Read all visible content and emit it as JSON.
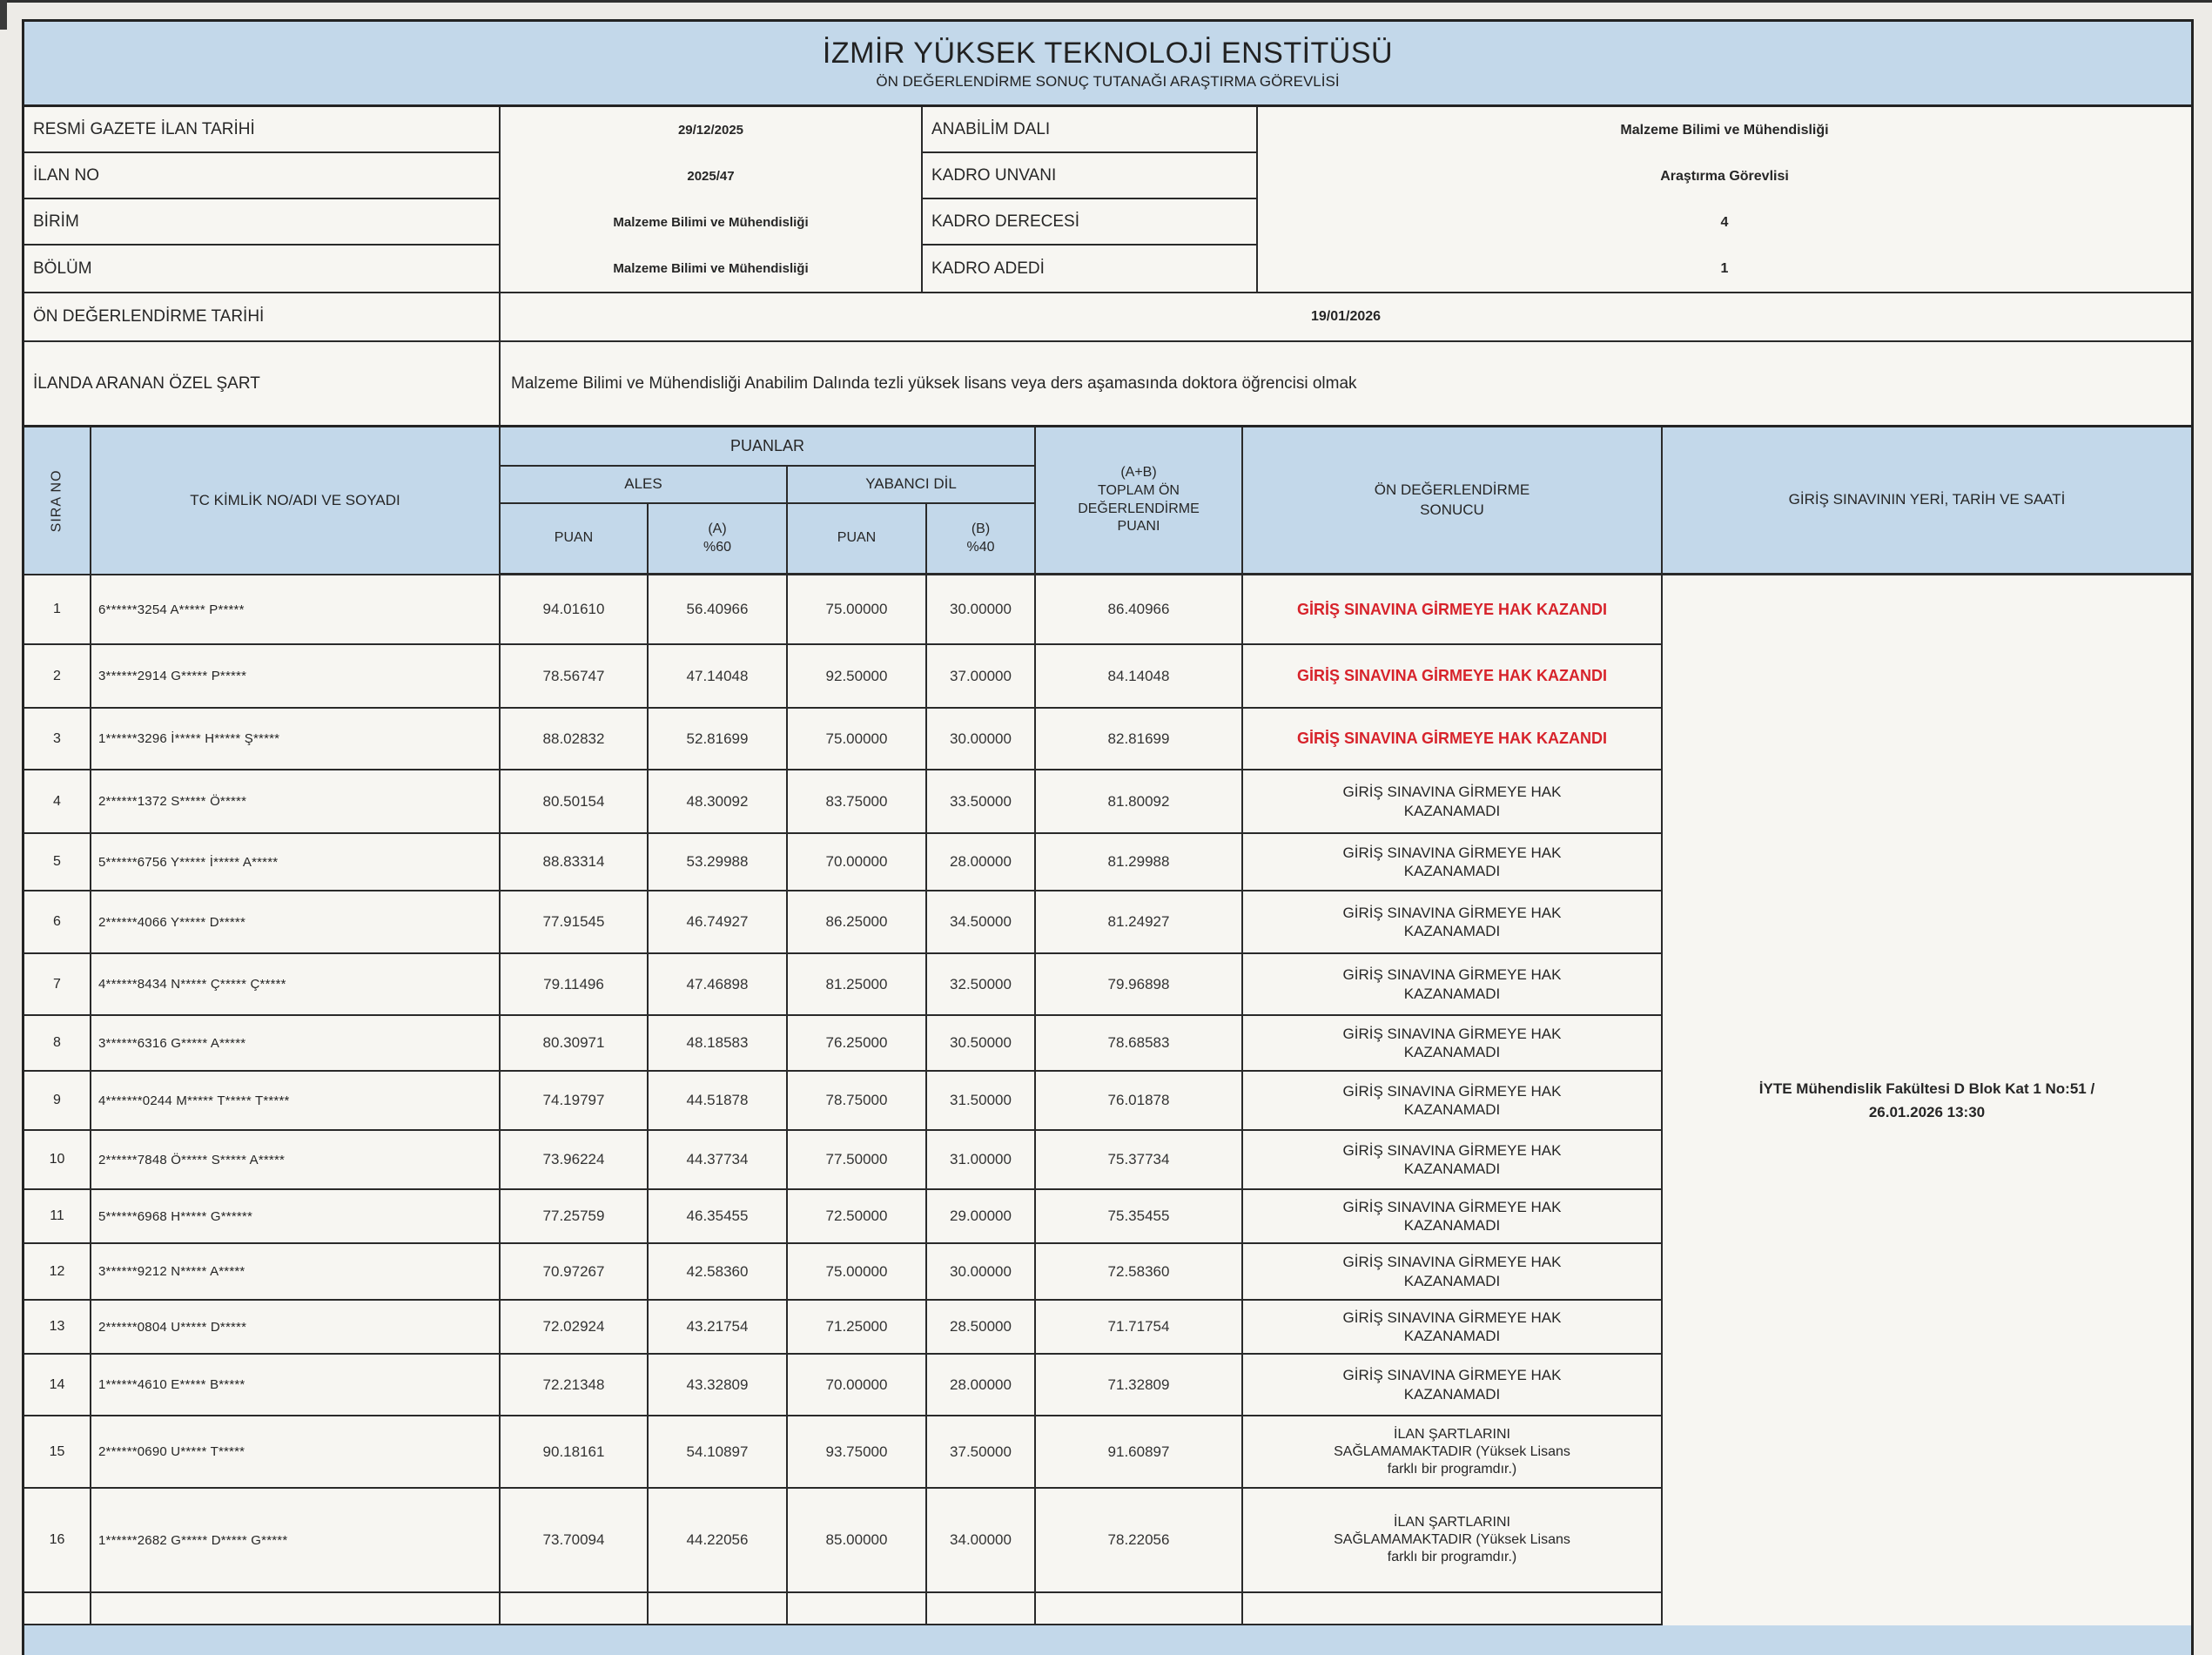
{
  "colors": {
    "header_blue": "#c3d8ea",
    "result_red": "#d7232b",
    "border_dark": "#232323"
  },
  "title": {
    "line1": "İZMİR YÜKSEK TEKNOLOJİ ENSTİTÜSÜ",
    "line2": "ÖN DEĞERLENDİRME SONUÇ TUTANAĞI ARAŞTIRMA GÖREVLİSİ"
  },
  "info": {
    "left_labels": [
      "RESMİ GAZETE İLAN TARİHİ",
      "İLAN NO",
      "BİRİM",
      "BÖLÜM"
    ],
    "left_values": [
      "29/12/2025",
      "2025/47",
      "Malzeme Bilimi ve Mühendisliği",
      "Malzeme Bilimi ve Mühendisliği"
    ],
    "right_labels": [
      "ANABİLİM DALI",
      "KADRO UNVANI",
      "KADRO DERECESİ",
      "KADRO ADEDİ"
    ],
    "right_values": [
      "Malzeme Bilimi ve Mühendisliği",
      "Araştırma Görevlisi",
      "4",
      "1"
    ],
    "eval_date_label": "ÖN DEĞERLENDİRME TARİHİ",
    "eval_date_value": "19/01/2026",
    "special_label": "İLANDA ARANAN ÖZEL ŞART",
    "special_value": "Malzeme Bilimi ve Mühendisliği Anabilim Dalında tezli yüksek lisans veya ders aşamasında doktora öğrencisi olmak"
  },
  "table": {
    "headers": {
      "sira": "SIRA NO",
      "name": "TC KİMLİK NO/ADI VE SOYADI",
      "puanlar": "PUANLAR",
      "ales": "ALES",
      "yabanci_dil": "YABANCI DİL",
      "puan1": "PUAN",
      "a60": "(A)\n%60",
      "puan2": "PUAN",
      "b40": "(B)\n%40",
      "toplam": "(A+B)\nTOPLAM ÖN\nDEĞERLENDİRME\nPUANI",
      "sonuc": "ÖN DEĞERLENDİRME\nSONUCU",
      "yer": "GİRİŞ SINAVININ YERİ, TARİH VE SAATİ"
    },
    "venue": "İYTE Mühendislik Fakültesi D Blok Kat 1 No:51 /\n26.01.2026 13:30",
    "rows": [
      {
        "no": "1",
        "name": "6******3254 A***** P*****",
        "ales_puan": "94.01610",
        "ales_a": "56.40966",
        "yd_puan": "75.00000",
        "yd_b": "30.00000",
        "total": "86.40966",
        "result": "GİRİŞ SINAVINA GİRMEYE HAK KAZANDI",
        "result_color": "#d7232b",
        "result_kind": "won"
      },
      {
        "no": "2",
        "name": "3******2914 G***** P*****",
        "ales_puan": "78.56747",
        "ales_a": "47.14048",
        "yd_puan": "92.50000",
        "yd_b": "37.00000",
        "total": "84.14048",
        "result": "GİRİŞ SINAVINA GİRMEYE HAK KAZANDI",
        "result_color": "#d7232b",
        "result_kind": "won"
      },
      {
        "no": "3",
        "name": "1******3296 İ***** H***** Ş*****",
        "ales_puan": "88.02832",
        "ales_a": "52.81699",
        "yd_puan": "75.00000",
        "yd_b": "30.00000",
        "total": "82.81699",
        "result": "GİRİŞ SINAVINA GİRMEYE HAK KAZANDI",
        "result_color": "#d7232b",
        "result_kind": "won"
      },
      {
        "no": "4",
        "name": "2******1372 S***** Ö*****",
        "ales_puan": "80.50154",
        "ales_a": "48.30092",
        "yd_puan": "83.75000",
        "yd_b": "33.50000",
        "total": "81.80092",
        "result": "GİRİŞ SINAVINA GİRMEYE HAK\nKAZANAMADI",
        "result_color": "#262626",
        "result_kind": "lost"
      },
      {
        "no": "5",
        "name": "5******6756 Y***** İ***** A*****",
        "ales_puan": "88.83314",
        "ales_a": "53.29988",
        "yd_puan": "70.00000",
        "yd_b": "28.00000",
        "total": "81.29988",
        "result": "GİRİŞ SINAVINA GİRMEYE HAK\nKAZANAMADI",
        "result_color": "#262626",
        "result_kind": "lost"
      },
      {
        "no": "6",
        "name": "2******4066 Y***** D*****",
        "ales_puan": "77.91545",
        "ales_a": "46.74927",
        "yd_puan": "86.25000",
        "yd_b": "34.50000",
        "total": "81.24927",
        "result": "GİRİŞ SINAVINA GİRMEYE HAK\nKAZANAMADI",
        "result_color": "#262626",
        "result_kind": "lost"
      },
      {
        "no": "7",
        "name": "4******8434 N***** Ç***** Ç*****",
        "ales_puan": "79.11496",
        "ales_a": "47.46898",
        "yd_puan": "81.25000",
        "yd_b": "32.50000",
        "total": "79.96898",
        "result": "GİRİŞ SINAVINA GİRMEYE HAK\nKAZANAMADI",
        "result_color": "#262626",
        "result_kind": "lost"
      },
      {
        "no": "8",
        "name": "3******6316 G***** A*****",
        "ales_puan": "80.30971",
        "ales_a": "48.18583",
        "yd_puan": "76.25000",
        "yd_b": "30.50000",
        "total": "78.68583",
        "result": "GİRİŞ SINAVINA GİRMEYE HAK\nKAZANAMADI",
        "result_color": "#262626",
        "result_kind": "lost"
      },
      {
        "no": "9",
        "name": "4*******0244 M***** T***** T*****",
        "ales_puan": "74.19797",
        "ales_a": "44.51878",
        "yd_puan": "78.75000",
        "yd_b": "31.50000",
        "total": "76.01878",
        "result": "GİRİŞ SINAVINA GİRMEYE HAK\nKAZANAMADI",
        "result_color": "#262626",
        "result_kind": "lost"
      },
      {
        "no": "10",
        "name": "2******7848 Ö***** S***** A*****",
        "ales_puan": "73.96224",
        "ales_a": "44.37734",
        "yd_puan": "77.50000",
        "yd_b": "31.00000",
        "total": "75.37734",
        "result": "GİRİŞ SINAVINA GİRMEYE HAK\nKAZANAMADI",
        "result_color": "#262626",
        "result_kind": "lost"
      },
      {
        "no": "11",
        "name": "5******6968 H***** G******",
        "ales_puan": "77.25759",
        "ales_a": "46.35455",
        "yd_puan": "72.50000",
        "yd_b": "29.00000",
        "total": "75.35455",
        "result": "GİRİŞ SINAVINA GİRMEYE HAK\nKAZANAMADI",
        "result_color": "#262626",
        "result_kind": "lost"
      },
      {
        "no": "12",
        "name": "3******9212 N***** A*****",
        "ales_puan": "70.97267",
        "ales_a": "42.58360",
        "yd_puan": "75.00000",
        "yd_b": "30.00000",
        "total": "72.58360",
        "result": "GİRİŞ SINAVINA GİRMEYE HAK\nKAZANAMADI",
        "result_color": "#262626",
        "result_kind": "lost"
      },
      {
        "no": "13",
        "name": "2******0804 U***** D*****",
        "ales_puan": "72.02924",
        "ales_a": "43.21754",
        "yd_puan": "71.25000",
        "yd_b": "28.50000",
        "total": "71.71754",
        "result": "GİRİŞ SINAVINA GİRMEYE HAK\nKAZANAMADI",
        "result_color": "#262626",
        "result_kind": "lost"
      },
      {
        "no": "14",
        "name": "1******4610 E***** B*****",
        "ales_puan": "72.21348",
        "ales_a": "43.32809",
        "yd_puan": "70.00000",
        "yd_b": "28.00000",
        "total": "71.32809",
        "result": "GİRİŞ SINAVINA GİRMEYE HAK\nKAZANAMADI",
        "result_color": "#262626",
        "result_kind": "lost"
      },
      {
        "no": "15",
        "name": "2******0690 U***** T*****",
        "ales_puan": "90.18161",
        "ales_a": "54.10897",
        "yd_puan": "93.75000",
        "yd_b": "37.50000",
        "total": "91.60897",
        "result": "İLAN ŞARTLARINI\nSAĞLAMAMAKTADIR (Yüksek Lisans\nfarklı bir programdır.)",
        "result_color": "#262626",
        "result_kind": "ineligible"
      },
      {
        "no": "16",
        "name": "1******2682 G***** D***** G*****",
        "ales_puan": "73.70094",
        "ales_a": "44.22056",
        "yd_puan": "85.00000",
        "yd_b": "34.00000",
        "total": "78.22056",
        "result": "İLAN ŞARTLARINI\nSAĞLAMAMAKTADIR (Yüksek Lisans\nfarklı bir programdır.)",
        "result_color": "#262626",
        "result_kind": "ineligible"
      },
      {
        "no": "",
        "name": "",
        "ales_puan": "",
        "ales_a": "",
        "yd_puan": "",
        "yd_b": "",
        "total": "",
        "result": "",
        "result_color": "#262626",
        "result_kind": "empty"
      }
    ]
  }
}
